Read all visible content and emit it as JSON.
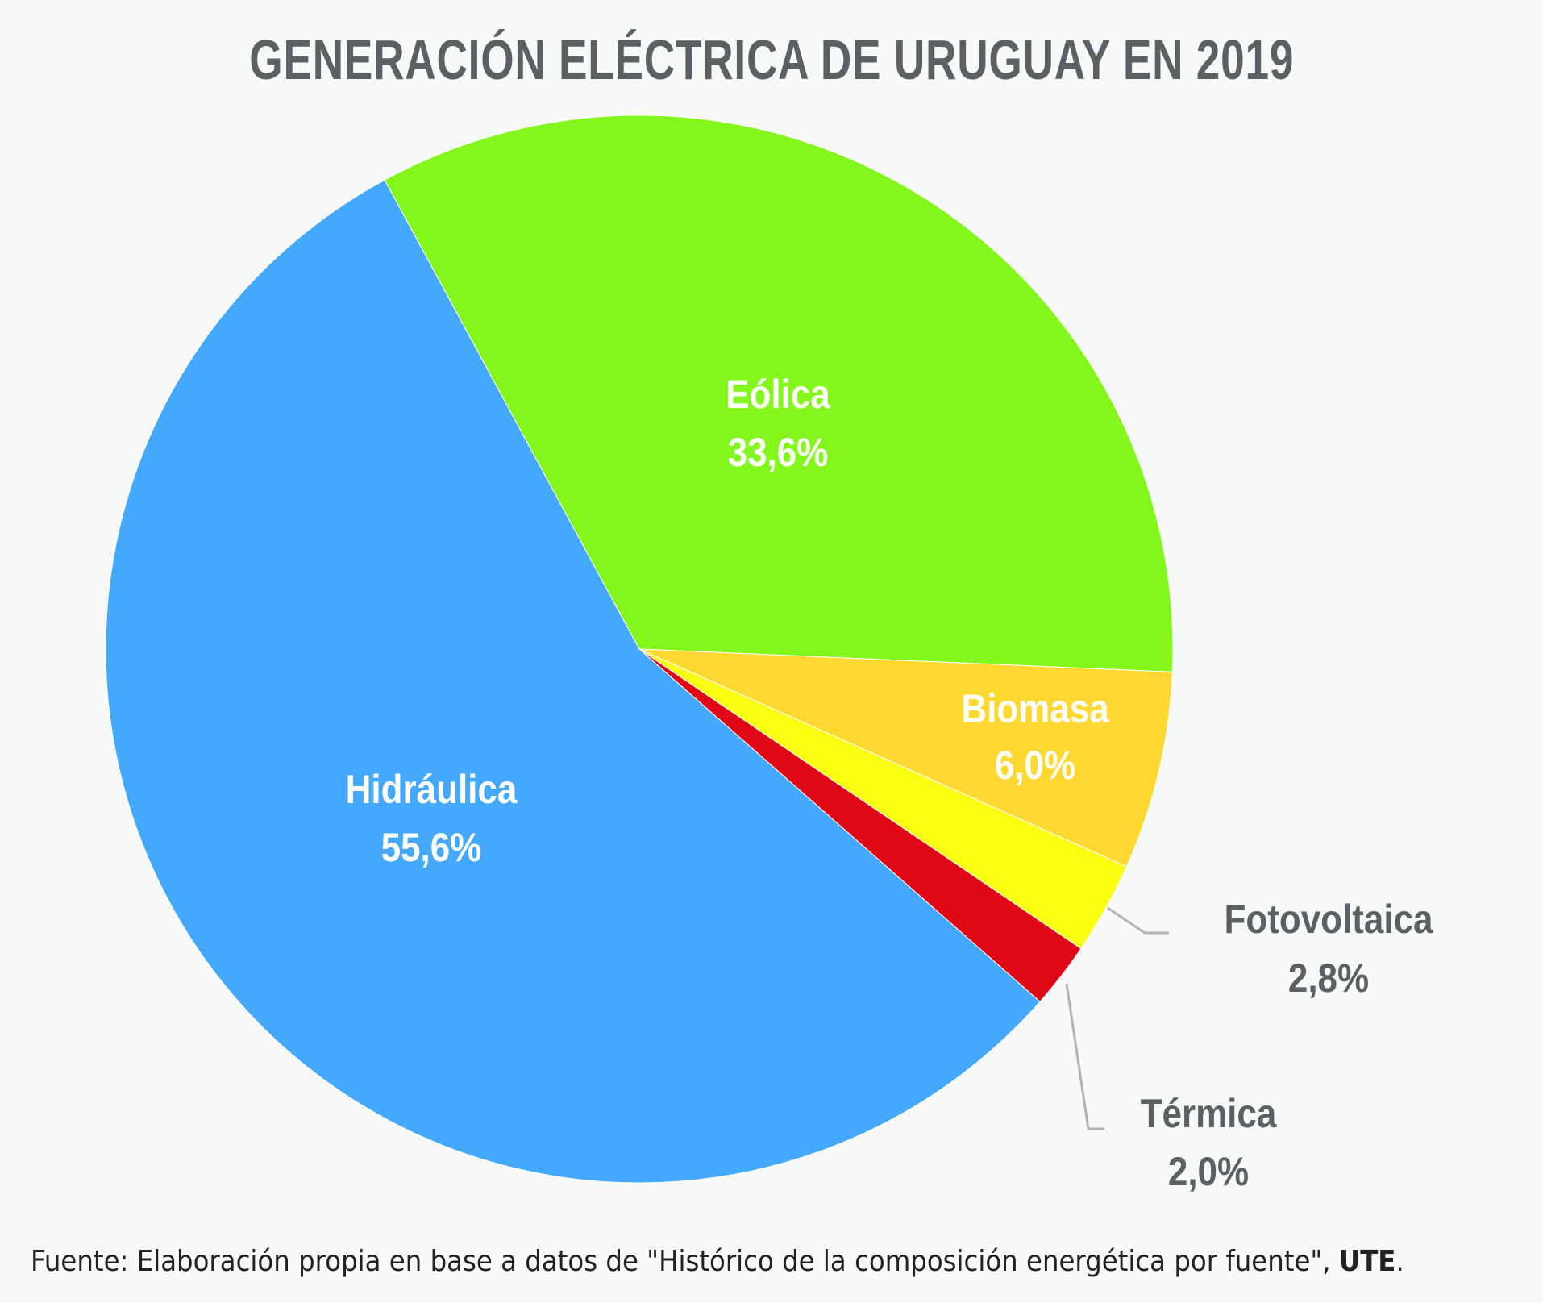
{
  "chart_data": {
    "type": "pie",
    "title": "GENERACIÓN ELÉCTRICA DE URUGUAY EN 2019",
    "slices": [
      {
        "label": "Eólica",
        "value": 33.6,
        "value_label": "33,6%",
        "color": "#83f71b",
        "label_color": "#ffffff"
      },
      {
        "label": "Biomasa",
        "value": 6.0,
        "value_label": "6,0%",
        "color": "#ffd932",
        "label_color": "#ffffff"
      },
      {
        "label": "Fotovoltaica",
        "value": 2.8,
        "value_label": "2,8%",
        "color": "#fbff12",
        "label_color": "#5b6063"
      },
      {
        "label": "Térmica",
        "value": 2.0,
        "value_label": "2,0%",
        "color": "#e00717",
        "label_color": "#5b6063"
      },
      {
        "label": "Hidráulica",
        "value": 55.6,
        "value_label": "55,6%",
        "color": "#44a8fc",
        "label_color": "#ffffff"
      }
    ]
  },
  "footer": {
    "source_text": "Fuente: Elaboración propia en base a datos de \"Histórico de la composición energética por fuente\", ",
    "source_org": "UTE",
    "source_end": "."
  },
  "colors": {
    "background": "#f7f8f8",
    "title": "#5b6063",
    "leader_line": "#b3b3b3"
  }
}
